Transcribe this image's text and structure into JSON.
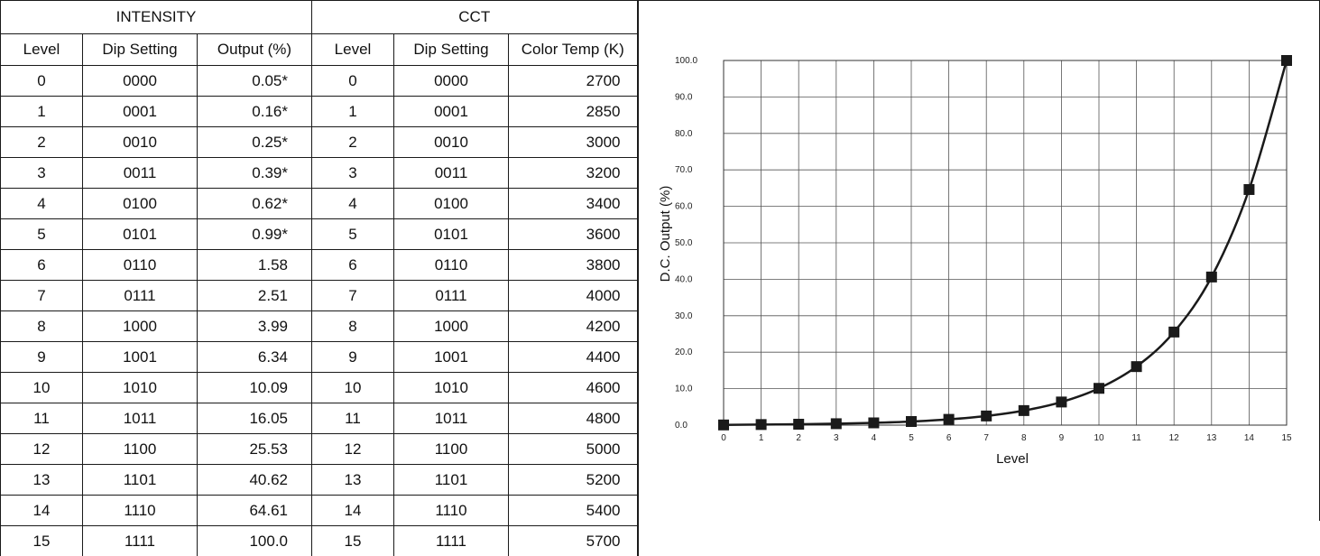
{
  "table": {
    "group_headers": {
      "intensity": "INTENSITY",
      "cct": "CCT"
    },
    "column_headers": [
      "Level",
      "Dip Setting",
      "Output (%)",
      "Level",
      "Dip Setting",
      "Color Temp (K)"
    ],
    "rows": [
      [
        "0",
        "0000",
        "0.05*",
        "0",
        "0000",
        "2700"
      ],
      [
        "1",
        "0001",
        "0.16*",
        "1",
        "0001",
        "2850"
      ],
      [
        "2",
        "0010",
        "0.25*",
        "2",
        "0010",
        "3000"
      ],
      [
        "3",
        "0011",
        "0.39*",
        "3",
        "0011",
        "3200"
      ],
      [
        "4",
        "0100",
        "0.62*",
        "4",
        "0100",
        "3400"
      ],
      [
        "5",
        "0101",
        "0.99*",
        "5",
        "0101",
        "3600"
      ],
      [
        "6",
        "0110",
        "1.58",
        "6",
        "0110",
        "3800"
      ],
      [
        "7",
        "0111",
        "2.51",
        "7",
        "0111",
        "4000"
      ],
      [
        "8",
        "1000",
        "3.99",
        "8",
        "1000",
        "4200"
      ],
      [
        "9",
        "1001",
        "6.34",
        "9",
        "1001",
        "4400"
      ],
      [
        "10",
        "1010",
        "10.09",
        "10",
        "1010",
        "4600"
      ],
      [
        "11",
        "1011",
        "16.05",
        "11",
        "1011",
        "4800"
      ],
      [
        "12",
        "1100",
        "25.53",
        "12",
        "1100",
        "5000"
      ],
      [
        "13",
        "1101",
        "40.62",
        "13",
        "1101",
        "5200"
      ],
      [
        "14",
        "1110",
        "64.61",
        "14",
        "1110",
        "5400"
      ],
      [
        "15",
        "1111",
        "100.0",
        "15",
        "1111",
        "5700"
      ]
    ]
  },
  "chart_data": {
    "type": "line",
    "title": "",
    "xlabel": "Level",
    "ylabel": "D.C. Output (%)",
    "x": [
      0,
      1,
      2,
      3,
      4,
      5,
      6,
      7,
      8,
      9,
      10,
      11,
      12,
      13,
      14,
      15
    ],
    "series": [
      {
        "values": [
          0.05,
          0.16,
          0.25,
          0.39,
          0.62,
          0.99,
          1.58,
          2.51,
          3.99,
          6.34,
          10.09,
          16.05,
          25.53,
          40.62,
          64.61,
          100.0
        ]
      }
    ],
    "x_ticks": [
      "0",
      "1",
      "2",
      "3",
      "4",
      "5",
      "6",
      "7",
      "8",
      "9",
      "10",
      "11",
      "12",
      "13",
      "14",
      "15"
    ],
    "y_ticks": [
      "0.0",
      "10.0",
      "20.0",
      "30.0",
      "40.0",
      "50.0",
      "60.0",
      "70.0",
      "80.0",
      "90.0",
      "100.0"
    ],
    "xlim": [
      0,
      15
    ],
    "ylim": [
      0,
      100
    ],
    "grid": true,
    "marker": "square",
    "line_color": "#1a1a1a"
  }
}
